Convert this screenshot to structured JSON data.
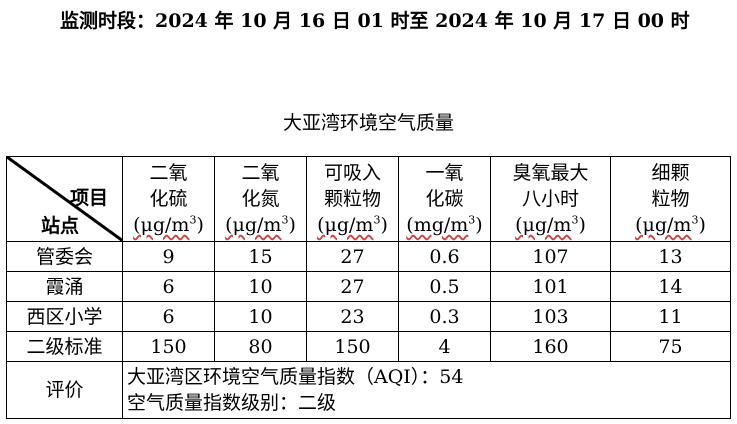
{
  "monitoring_period": "监测时段：2024 年 10 月 16 日 01 时至 2024 年 10 月 17 日 00 时",
  "table_title": "大亚湾环境空气质量",
  "corner": {
    "item": "项目",
    "site": "站点"
  },
  "columns": [
    {
      "line1": "二氧",
      "line2": "化硫",
      "unit": "(μg/m",
      "sup": "3",
      "close": ")"
    },
    {
      "line1": "二氧",
      "line2": "化氮",
      "unit": "(μg/m",
      "sup": "3",
      "close": ")"
    },
    {
      "line1": "可吸入",
      "line2": "颗粒物",
      "unit": "(μg/m",
      "sup": "3",
      "close": ")"
    },
    {
      "line1": "一氧",
      "line2": "化碳",
      "unit": "(mg/m",
      "sup": "3",
      "close": ")"
    },
    {
      "line1": "臭氧最大",
      "line2": "八小时",
      "unit": "(μg/m",
      "sup": "3",
      "close": ")"
    },
    {
      "line1": "细颗",
      "line2": "粒物",
      "unit": "(μg/m",
      "sup": "3",
      "close": ")"
    }
  ],
  "rows": [
    {
      "site": "管委会",
      "values": [
        "9",
        "15",
        "27",
        "0.6",
        "107",
        "13"
      ]
    },
    {
      "site": "霞涌",
      "values": [
        "6",
        "10",
        "27",
        "0.5",
        "101",
        "14"
      ]
    },
    {
      "site": "西区小学",
      "values": [
        "6",
        "10",
        "23",
        "0.3",
        "103",
        "11"
      ]
    }
  ],
  "standard": {
    "site": "二级标准",
    "values": [
      "150",
      "80",
      "150",
      "4",
      "160",
      "75"
    ]
  },
  "evaluation": {
    "label": "评价",
    "aqi_line": "大亚湾区环境空气质量指数（AQI）：54",
    "level_line": "空气质量指数级别：二级"
  }
}
